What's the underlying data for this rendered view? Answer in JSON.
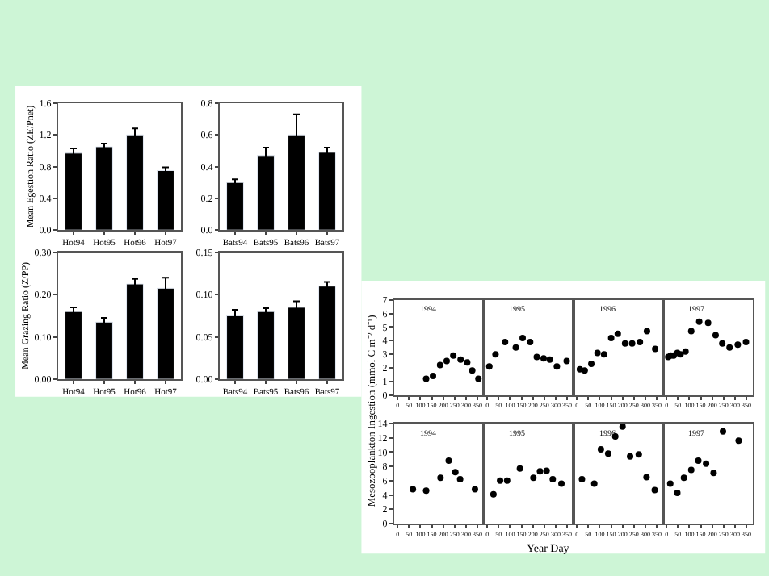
{
  "chart_data": [
    {
      "type": "bar",
      "ylabel": "Mean Egestion Ratio (ZE/Pnet)",
      "categories": [
        "Hot94",
        "Hot95",
        "Hot96",
        "Hot97"
      ],
      "series": [
        {
          "color": "#000000",
          "values": [
            0.97,
            1.05,
            1.2,
            0.75
          ],
          "errors": [
            0.06,
            0.04,
            0.08,
            0.04
          ]
        }
      ],
      "ylim": [
        0,
        1.6
      ],
      "yticks": [
        {
          "value": 0,
          "label": "0.0"
        },
        0.4,
        0.8,
        1.2,
        1.6
      ]
    },
    {
      "type": "bar",
      "categories": [
        "Bats94",
        "Bats95",
        "Bats96",
        "Bats97"
      ],
      "series": [
        {
          "color": "#000000",
          "values": [
            0.3,
            0.47,
            0.6,
            0.49
          ],
          "errors": [
            0.02,
            0.05,
            0.13,
            0.03
          ]
        }
      ],
      "ylim": [
        0,
        0.8
      ],
      "yticks": [
        {
          "value": 0,
          "label": "0.0"
        },
        0.2,
        0.4,
        0.6,
        0.8
      ]
    },
    {
      "type": "bar",
      "ylabel": "Mean Grazing Ratio (Z/PP)",
      "categories": [
        "Hot94",
        "Hot95",
        "Hot96",
        "Hot97"
      ],
      "series": [
        {
          "color": "#000000",
          "values": [
            0.16,
            0.135,
            0.225,
            0.215
          ],
          "errors": [
            0.01,
            0.01,
            0.012,
            0.025
          ]
        }
      ],
      "ylim": [
        0,
        0.3
      ],
      "yticks": [
        {
          "value": 0,
          "label": "0.00"
        },
        {
          "value": 0.1,
          "label": "0.10"
        },
        {
          "value": 0.2,
          "label": "0.20"
        },
        {
          "value": 0.3,
          "label": "0.30"
        }
      ]
    },
    {
      "type": "bar",
      "categories": [
        "Bats94",
        "Bats95",
        "Bats96",
        "Bats97"
      ],
      "series": [
        {
          "color": "#000000",
          "values": [
            0.075,
            0.08,
            0.085,
            0.11
          ],
          "errors": [
            0.007,
            0.004,
            0.007,
            0.005
          ]
        }
      ],
      "ylim": [
        0,
        0.15
      ],
      "yticks": [
        {
          "value": 0,
          "label": "0.00"
        },
        0.05,
        {
          "value": 0.1,
          "label": "0.10"
        },
        0.15
      ]
    },
    {
      "type": "scatter",
      "ylabel": "Mesozooplankton Ingestion (mmol C m⁻² d⁻¹)",
      "marker": "circle",
      "annotations": [
        "1994"
      ],
      "series": [
        {
          "color": "#000000",
          "x": [
            125,
            155,
            186,
            215,
            244,
            276,
            305,
            327,
            354
          ],
          "values": [
            1.2,
            1.4,
            2.2,
            2.5,
            2.9,
            2.6,
            2.4,
            1.8,
            1.2
          ]
        }
      ],
      "xlim": [
        -15,
        378
      ],
      "xticks": [
        0,
        50,
        100,
        150,
        200,
        250,
        300,
        350
      ],
      "ylim": [
        0,
        7
      ],
      "yticks": [
        0,
        1,
        2,
        3,
        4,
        5,
        6,
        7
      ]
    },
    {
      "type": "scatter",
      "marker": "circle",
      "annotations": [
        "1995"
      ],
      "tick_labels": "x",
      "series": [
        {
          "color": "#000000",
          "x": [
            9,
            36,
            78,
            125,
            155,
            188,
            217,
            247,
            274,
            305,
            348
          ],
          "values": [
            2.1,
            3.0,
            3.9,
            3.5,
            4.2,
            3.9,
            2.8,
            2.7,
            2.6,
            2.1,
            2.5
          ]
        }
      ],
      "xlim": [
        -15,
        378
      ],
      "xticks": [
        0,
        50,
        100,
        150,
        200,
        250,
        300,
        350
      ],
      "ylim": [
        0,
        7
      ]
    },
    {
      "type": "scatter",
      "marker": "circle",
      "annotations": [
        "1996"
      ],
      "tick_labels": "x",
      "series": [
        {
          "color": "#000000",
          "x": [
            13,
            34,
            63,
            90,
            119,
            150,
            179,
            211,
            242,
            276,
            307,
            343
          ],
          "values": [
            1.9,
            1.8,
            2.3,
            3.1,
            3.0,
            4.2,
            4.5,
            3.8,
            3.8,
            3.9,
            4.7,
            3.4
          ]
        }
      ],
      "xlim": [
        -15,
        378
      ],
      "xticks": [
        0,
        50,
        100,
        150,
        200,
        250,
        300,
        350
      ],
      "ylim": [
        0,
        7
      ]
    },
    {
      "type": "scatter",
      "marker": "circle",
      "annotations": [
        "1997"
      ],
      "tick_labels": "x",
      "series": [
        {
          "color": "#000000",
          "x": [
            7,
            18,
            31,
            47,
            61,
            83,
            108,
            143,
            182,
            215,
            244,
            276,
            312,
            348
          ],
          "values": [
            2.8,
            2.9,
            2.9,
            3.1,
            3.0,
            3.2,
            4.7,
            5.4,
            5.3,
            4.4,
            3.8,
            3.5,
            3.7,
            3.9
          ]
        }
      ],
      "xlim": [
        -15,
        378
      ],
      "xticks": [
        0,
        50,
        100,
        150,
        200,
        250,
        300,
        350
      ],
      "ylim": [
        0,
        7
      ]
    },
    {
      "type": "scatter",
      "xlabel": "Year Day",
      "marker": "circle",
      "annotations": [
        "1994"
      ],
      "series": [
        {
          "color": "#000000",
          "x": [
            67,
            125,
            188,
            224,
            253,
            274,
            339
          ],
          "values": [
            4.8,
            4.6,
            6.4,
            8.8,
            7.2,
            6.2,
            4.8
          ]
        }
      ],
      "xlim": [
        -15,
        378
      ],
      "xticks": [
        0,
        50,
        100,
        150,
        200,
        250,
        300,
        350
      ],
      "ylim": [
        0,
        14
      ],
      "yticks": [
        0,
        2,
        4,
        6,
        8,
        10,
        12,
        14
      ]
    },
    {
      "type": "scatter",
      "marker": "circle",
      "annotations": [
        "1995"
      ],
      "tick_labels": "x",
      "series": [
        {
          "color": "#000000",
          "x": [
            27,
            56,
            87,
            143,
            202,
            231,
            260,
            287,
            325
          ],
          "values": [
            4.1,
            6.0,
            6.0,
            7.7,
            6.4,
            7.3,
            7.4,
            6.2,
            5.6
          ]
        }
      ],
      "xlim": [
        -15,
        378
      ],
      "xticks": [
        0,
        50,
        100,
        150,
        200,
        250,
        300,
        350
      ],
      "ylim": [
        0,
        14
      ]
    },
    {
      "type": "scatter",
      "marker": "circle",
      "annotations": [
        "1996"
      ],
      "tick_labels": "x",
      "series": [
        {
          "color": "#000000",
          "x": [
            22,
            76,
            105,
            137,
            168,
            200,
            233,
            271,
            305,
            341
          ],
          "values": [
            6.2,
            5.6,
            10.4,
            9.8,
            12.2,
            13.6,
            9.4,
            9.7,
            6.5,
            4.7
          ]
        }
      ],
      "xlim": [
        -15,
        378
      ],
      "xticks": [
        0,
        50,
        100,
        150,
        200,
        250,
        300,
        350
      ],
      "ylim": [
        0,
        14
      ]
    },
    {
      "type": "scatter",
      "marker": "circle",
      "annotations": [
        "1997"
      ],
      "tick_labels": "x",
      "series": [
        {
          "color": "#000000",
          "x": [
            16,
            47,
            76,
            108,
            139,
            173,
            206,
            247,
            316
          ],
          "values": [
            5.6,
            4.3,
            6.4,
            7.5,
            8.8,
            8.4,
            7.1,
            12.9,
            11.6
          ]
        }
      ],
      "xlim": [
        -15,
        378
      ],
      "xticks": [
        0,
        50,
        100,
        150,
        200,
        250,
        300,
        350
      ],
      "ylim": [
        0,
        14
      ]
    }
  ]
}
